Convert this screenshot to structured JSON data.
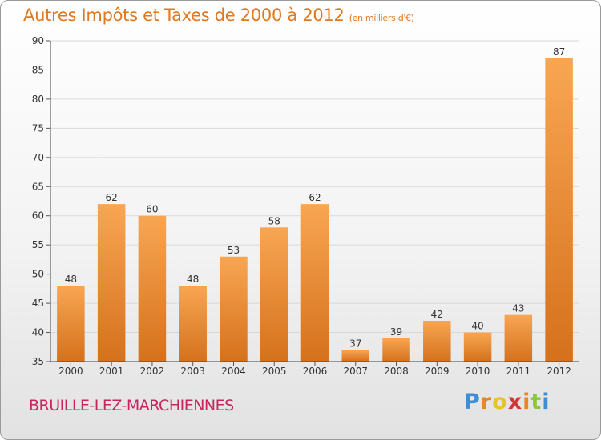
{
  "page": {
    "title": "Autres Impôts et Taxes de 2000 à 2012",
    "subtitle": "(en milliers d'€)",
    "commune": "BRUILLE-LEZ-MARCHIENNES",
    "logo_text": "Proxiti",
    "logo_colors": [
      "#3a8fd6",
      "#e8872a",
      "#e8c42a",
      "#d6343a",
      "#e8872a",
      "#8bc63e",
      "#3a8fd6"
    ]
  },
  "colors": {
    "bar_light": "#f8a653",
    "bar_dark": "#d5711c",
    "title": "#e0781e",
    "commune": "#c8245e"
  },
  "chart_data": {
    "type": "bar",
    "categories": [
      "2000",
      "2001",
      "2002",
      "2003",
      "2004",
      "2005",
      "2006",
      "2007",
      "2008",
      "2009",
      "2010",
      "2011",
      "2012"
    ],
    "values": [
      48,
      62,
      60,
      48,
      53,
      58,
      62,
      37,
      39,
      42,
      40,
      43,
      87
    ],
    "title": "Autres Impôts et Taxes de 2000 à 2012",
    "subtitle": "(en milliers d'€)",
    "xlabel": "",
    "ylabel": "",
    "ylim": [
      35,
      90
    ],
    "yticks": [
      35,
      40,
      45,
      50,
      55,
      60,
      65,
      70,
      75,
      80,
      85,
      90
    ],
    "grid": true,
    "legend": "none"
  }
}
